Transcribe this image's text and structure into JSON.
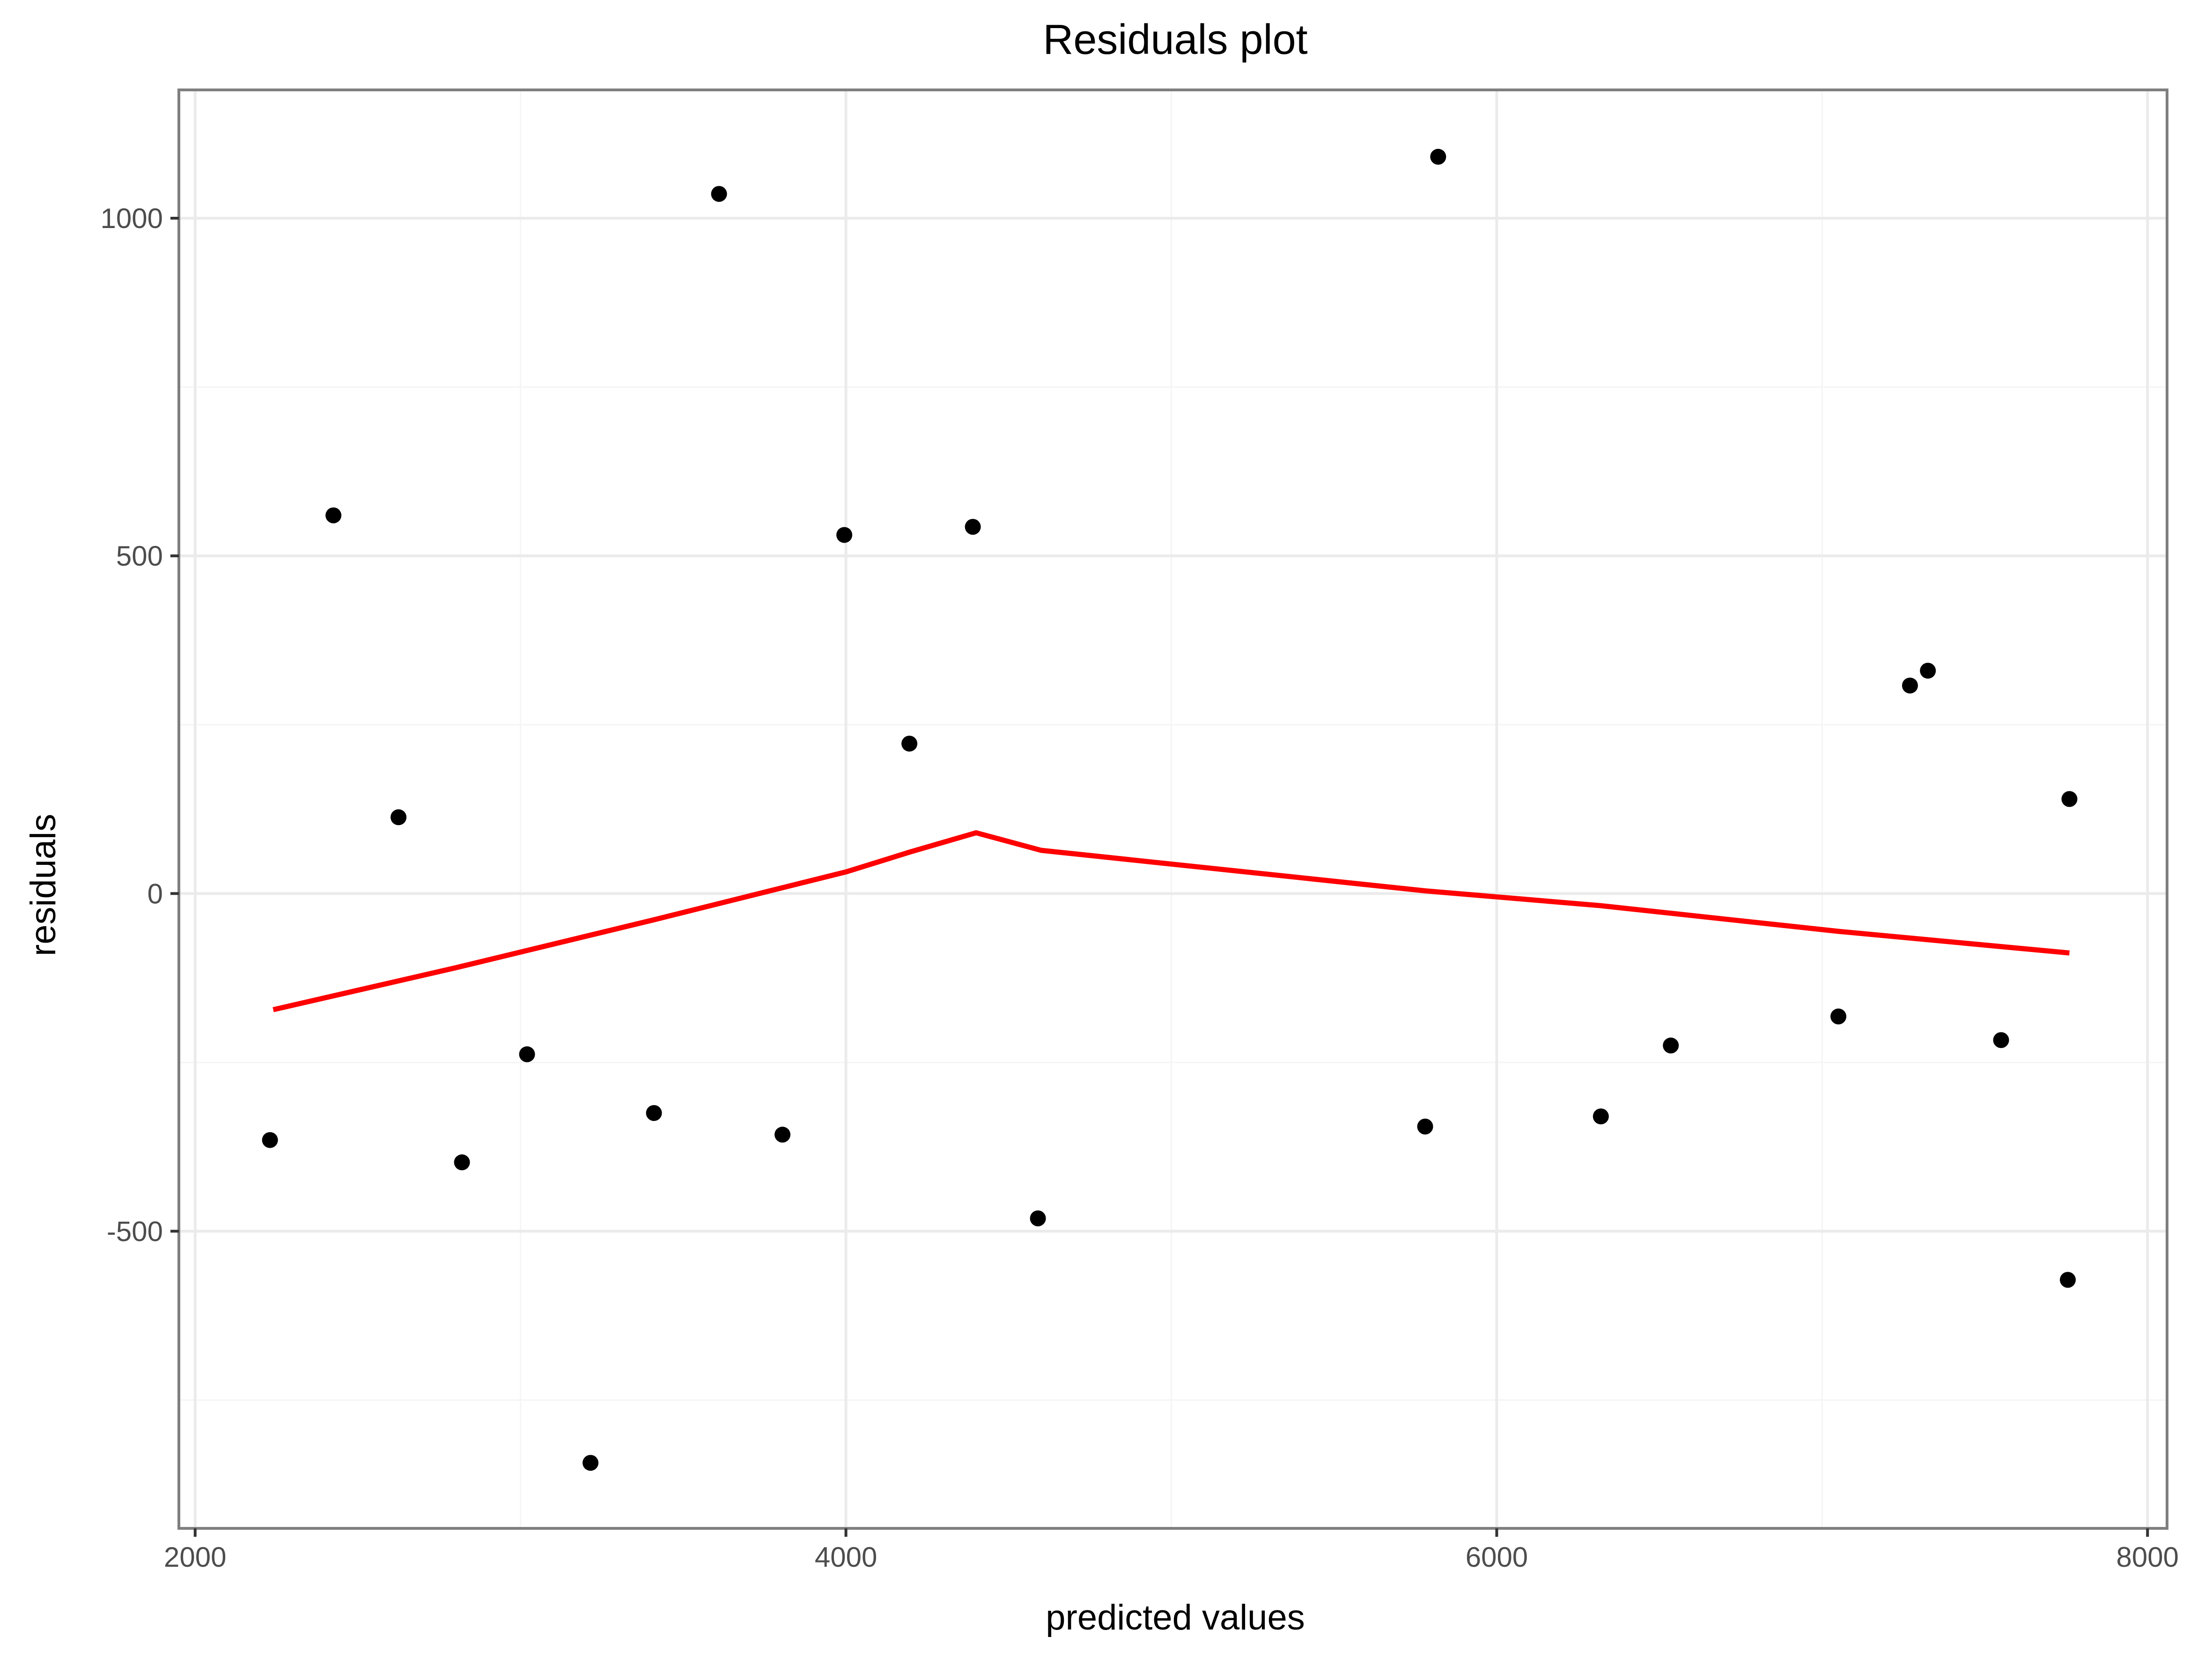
{
  "chart_data": {
    "type": "scatter",
    "title": "Residuals plot",
    "xlabel": "predicted values",
    "ylabel": "residuals",
    "xlim": [
      1950,
      8060
    ],
    "ylim": [
      -940,
      1190
    ],
    "x_ticks": [
      2000,
      4000,
      6000,
      8000
    ],
    "y_ticks": [
      -500,
      0,
      500,
      1000
    ],
    "x_tick_labels": [
      "2000",
      "4000",
      "6000",
      "8000"
    ],
    "y_tick_labels": [
      "-500",
      "0",
      "500",
      "1000"
    ],
    "x_minor_ticks": [
      3000,
      5000,
      7000
    ],
    "y_minor_ticks": [
      -750,
      -250,
      250,
      750
    ],
    "grid": true,
    "colors": {
      "points": "#000000",
      "trend": "#ff0000",
      "grid": "#ebebeb",
      "border": "#7f7f7f"
    },
    "series": [
      {
        "type": "scatter",
        "points": [
          {
            "x": 2230,
            "y": -365
          },
          {
            "x": 2425,
            "y": 560
          },
          {
            "x": 2625,
            "y": 113
          },
          {
            "x": 2820,
            "y": -398
          },
          {
            "x": 3020,
            "y": -238
          },
          {
            "x": 3215,
            "y": -843
          },
          {
            "x": 3410,
            "y": -325
          },
          {
            "x": 3610,
            "y": 1036
          },
          {
            "x": 3805,
            "y": -357
          },
          {
            "x": 3995,
            "y": 531
          },
          {
            "x": 4195,
            "y": 222
          },
          {
            "x": 4390,
            "y": 543
          },
          {
            "x": 4590,
            "y": -481
          },
          {
            "x": 5780,
            "y": -345
          },
          {
            "x": 5820,
            "y": 1091
          },
          {
            "x": 6320,
            "y": -330
          },
          {
            "x": 6535,
            "y": -225
          },
          {
            "x": 7050,
            "y": -182
          },
          {
            "x": 7270,
            "y": 308
          },
          {
            "x": 7325,
            "y": 330
          },
          {
            "x": 7550,
            "y": -217
          },
          {
            "x": 7755,
            "y": -572
          },
          {
            "x": 7760,
            "y": 140
          }
        ]
      },
      {
        "type": "line",
        "points": [
          {
            "x": 2240,
            "y": -172
          },
          {
            "x": 2800,
            "y": -110
          },
          {
            "x": 3400,
            "y": -40
          },
          {
            "x": 3800,
            "y": 8
          },
          {
            "x": 4000,
            "y": 32
          },
          {
            "x": 4200,
            "y": 62
          },
          {
            "x": 4400,
            "y": 90
          },
          {
            "x": 4600,
            "y": 64
          },
          {
            "x": 5780,
            "y": 4
          },
          {
            "x": 6320,
            "y": -18
          },
          {
            "x": 7050,
            "y": -56
          },
          {
            "x": 7760,
            "y": -88
          }
        ]
      }
    ]
  }
}
